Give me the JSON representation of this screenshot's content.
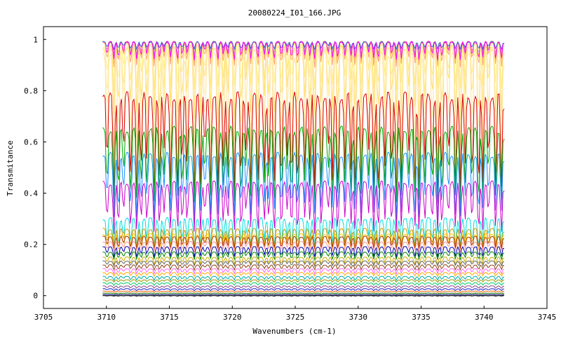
{
  "chart_data": {
    "type": "line",
    "title": "20080224_I01_166.JPG",
    "xlabel": "Wavenumbers (cm-1)",
    "ylabel": "Transmitance",
    "xlim": [
      3705,
      3745
    ],
    "ylim": [
      -0.05,
      1.05
    ],
    "x_ticks": [
      3705,
      3710,
      3715,
      3720,
      3725,
      3730,
      3735,
      3740,
      3745
    ],
    "y_ticks": [
      0,
      0.2,
      0.4,
      0.6,
      0.8,
      1
    ],
    "y_tick_labels": [
      "0",
      "0.2",
      "0.4",
      "0.6",
      "0.8",
      "1"
    ],
    "x_range_of_data": [
      3709.7,
      3741.6
    ],
    "grid": false,
    "legend": "none",
    "series": [
      {
        "color": "#ffff66",
        "base": 0.99,
        "depth": 0.04
      },
      {
        "color": "#ffd700",
        "base": 0.99,
        "depth": 0.06
      },
      {
        "color": "#ffcc80",
        "base": 0.99,
        "depth": 0.08
      },
      {
        "color": "#ffa07a",
        "base": 0.99,
        "depth": 0.1
      },
      {
        "color": "#cc99cc",
        "base": 0.99,
        "depth": 0.05
      },
      {
        "color": "#3366cc",
        "base": 0.99,
        "depth": 0.03
      },
      {
        "color": "#ff00ff",
        "base": 0.99,
        "depth": 0.07
      },
      {
        "color": "#ffee88",
        "base": 0.98,
        "depth": 0.18
      },
      {
        "color": "#ffe066",
        "base": 0.97,
        "depth": 0.28
      },
      {
        "color": "#fff59d",
        "base": 0.96,
        "depth": 0.4
      },
      {
        "color": "#ffe4b5",
        "base": 0.95,
        "depth": 0.55
      },
      {
        "color": "#dd0000",
        "base": 0.78,
        "depth": 0.4
      },
      {
        "color": "#00aa00",
        "base": 0.65,
        "depth": 0.3
      },
      {
        "color": "#1e90ff",
        "base": 0.55,
        "depth": 0.25
      },
      {
        "color": "#cc00cc",
        "base": 0.44,
        "depth": 0.2
      },
      {
        "color": "#00dddd",
        "base": 0.3,
        "depth": 0.12
      },
      {
        "color": "#cc9900",
        "base": 0.26,
        "depth": 0.08
      },
      {
        "color": "#ffcc00",
        "base": 0.24,
        "depth": 0.07
      },
      {
        "color": "#aa3300",
        "base": 0.23,
        "depth": 0.05
      },
      {
        "color": "#ff9999",
        "base": 0.21,
        "depth": 0.04
      },
      {
        "color": "#0000aa",
        "base": 0.19,
        "depth": 0.04
      },
      {
        "color": "#008800",
        "base": 0.17,
        "depth": 0.03
      },
      {
        "color": "#ccaa00",
        "base": 0.15,
        "depth": 0.03
      },
      {
        "color": "#666666",
        "base": 0.135,
        "depth": 0.02
      },
      {
        "color": "#8b4513",
        "base": 0.12,
        "depth": 0.02
      },
      {
        "color": "#ff66ff",
        "base": 0.105,
        "depth": 0.02
      },
      {
        "color": "#ffaa00",
        "base": 0.09,
        "depth": 0.015
      },
      {
        "color": "#00aaaa",
        "base": 0.075,
        "depth": 0.015
      },
      {
        "color": "#999900",
        "base": 0.062,
        "depth": 0.01
      },
      {
        "color": "#00cc66",
        "base": 0.05,
        "depth": 0.01
      },
      {
        "color": "#884488",
        "base": 0.038,
        "depth": 0.01
      },
      {
        "color": "#2222cc",
        "base": 0.027,
        "depth": 0.008
      },
      {
        "color": "#ff6600",
        "base": 0.018,
        "depth": 0.006
      },
      {
        "color": "#006600",
        "base": 0.01,
        "depth": 0.004
      },
      {
        "color": "#000066",
        "base": 0.004,
        "depth": 0.003
      },
      {
        "color": "#000000",
        "base": 0.0,
        "depth": 0.002
      }
    ]
  }
}
